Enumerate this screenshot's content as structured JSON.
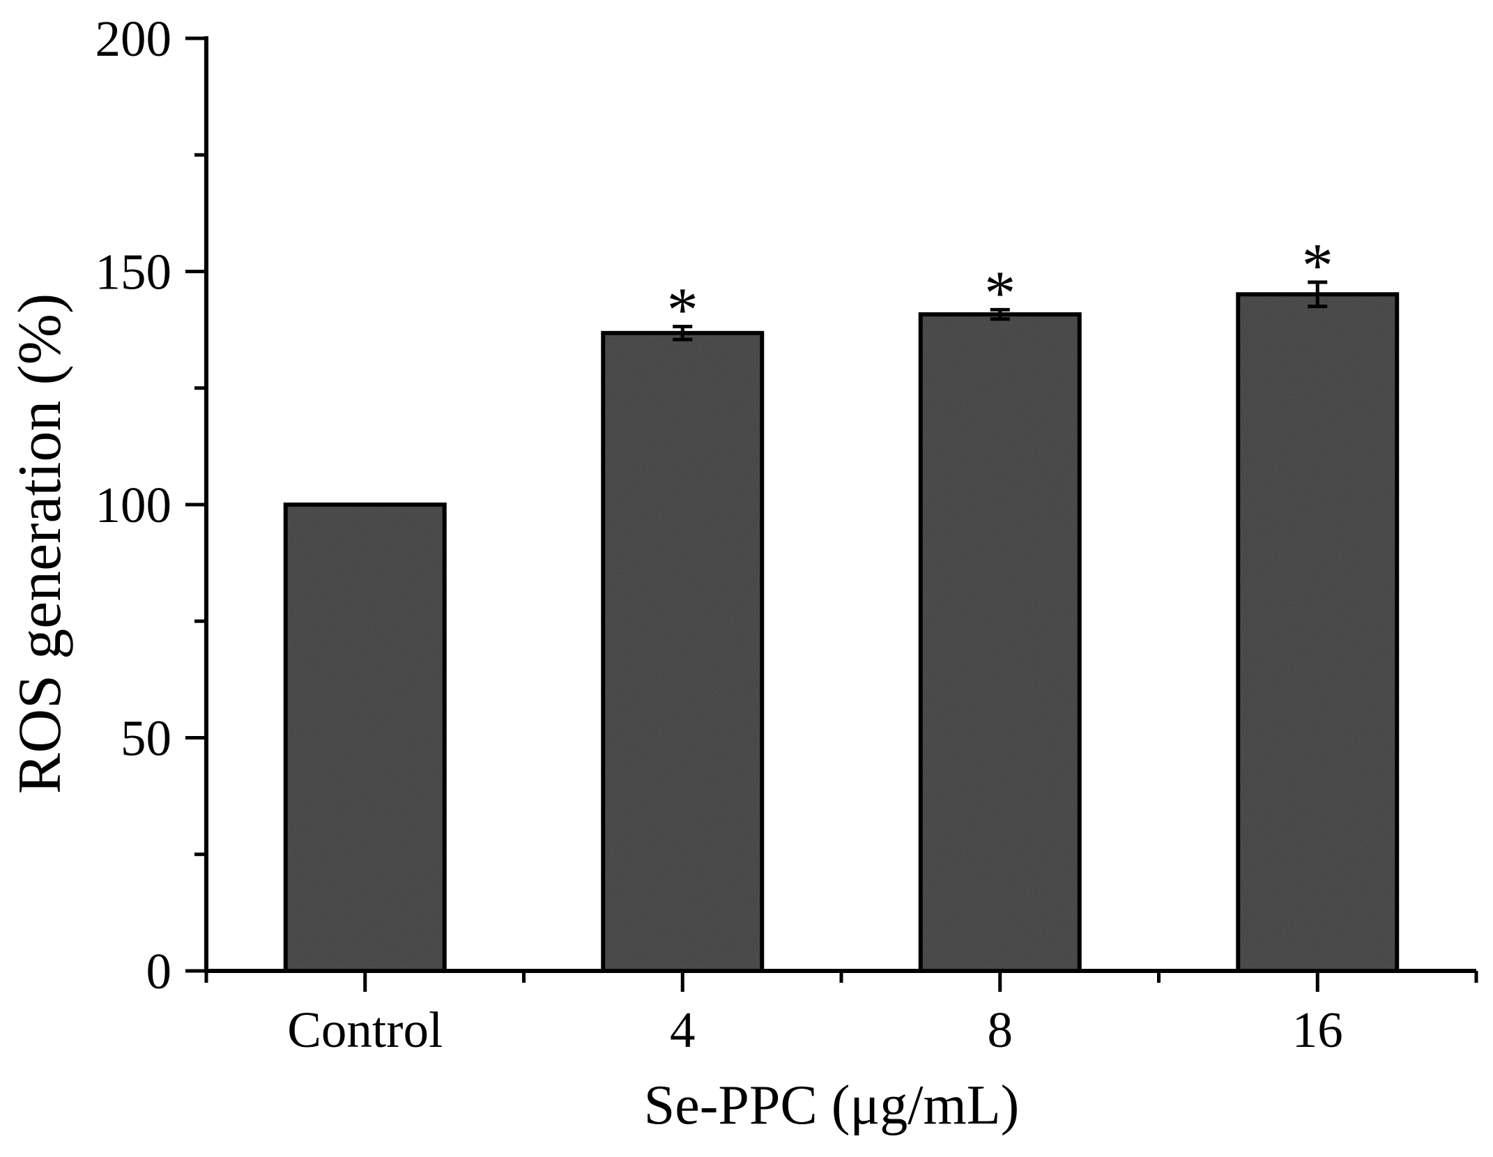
{
  "figure": {
    "background": "#ffffff",
    "description": "Bar chart of ROS generation versus Se-PPC concentration"
  },
  "chart_data": {
    "type": "bar",
    "title": "",
    "xlabel": "Se-PPC (μg/mL)",
    "ylabel": "ROS generation (%)",
    "categories": [
      "Control",
      "4",
      "8",
      "16"
    ],
    "values": [
      100,
      136.8,
      140.8,
      145.1
    ],
    "errors": [
      0,
      1.4,
      1.0,
      2.6
    ],
    "sig_markers": [
      "",
      "*",
      "*",
      "*"
    ],
    "ylim": [
      0,
      200
    ],
    "ytick_step": 50,
    "ytick_minor_step": 25,
    "ytick_labels": [
      "0",
      "50",
      "100",
      "150",
      "200"
    ],
    "grid": false,
    "legend": null,
    "bar_fill": "#3c3c3c",
    "bar_border": "#000000",
    "axis_color": "#000000",
    "error_bar_color": "#000000",
    "sig_marker_color": "#000000"
  }
}
